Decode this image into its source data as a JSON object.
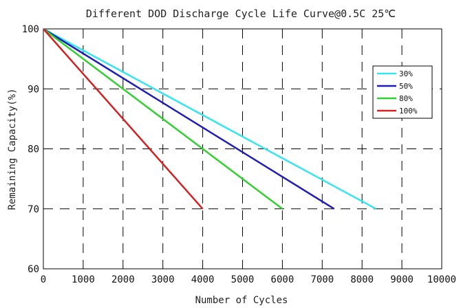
{
  "chart_data": {
    "type": "line",
    "title": "Different DOD Discharge Cycle Life Curve@0.5C 25℃",
    "xlabel": "Number of Cycles",
    "ylabel": "Remaining Capacity(%)",
    "xlim": [
      0,
      10000
    ],
    "ylim": [
      60,
      100
    ],
    "xticks": [
      0,
      1000,
      2000,
      3000,
      4000,
      5000,
      6000,
      7000,
      8000,
      9000,
      10000
    ],
    "yticks": [
      60,
      70,
      80,
      90,
      100
    ],
    "grid": "dashed",
    "legend_position": "top-right",
    "series": [
      {
        "name": "30%",
        "color": "#33e6f2",
        "points": [
          [
            0,
            100
          ],
          [
            8350,
            70
          ]
        ]
      },
      {
        "name": "50%",
        "color": "#1c1cb8",
        "points": [
          [
            0,
            100
          ],
          [
            7300,
            70
          ]
        ]
      },
      {
        "name": "80%",
        "color": "#2fd12f",
        "points": [
          [
            0,
            100
          ],
          [
            6000,
            70
          ]
        ]
      },
      {
        "name": "100%",
        "color": "#d42020",
        "points": [
          [
            0,
            100
          ],
          [
            4000,
            70
          ]
        ]
      }
    ]
  }
}
